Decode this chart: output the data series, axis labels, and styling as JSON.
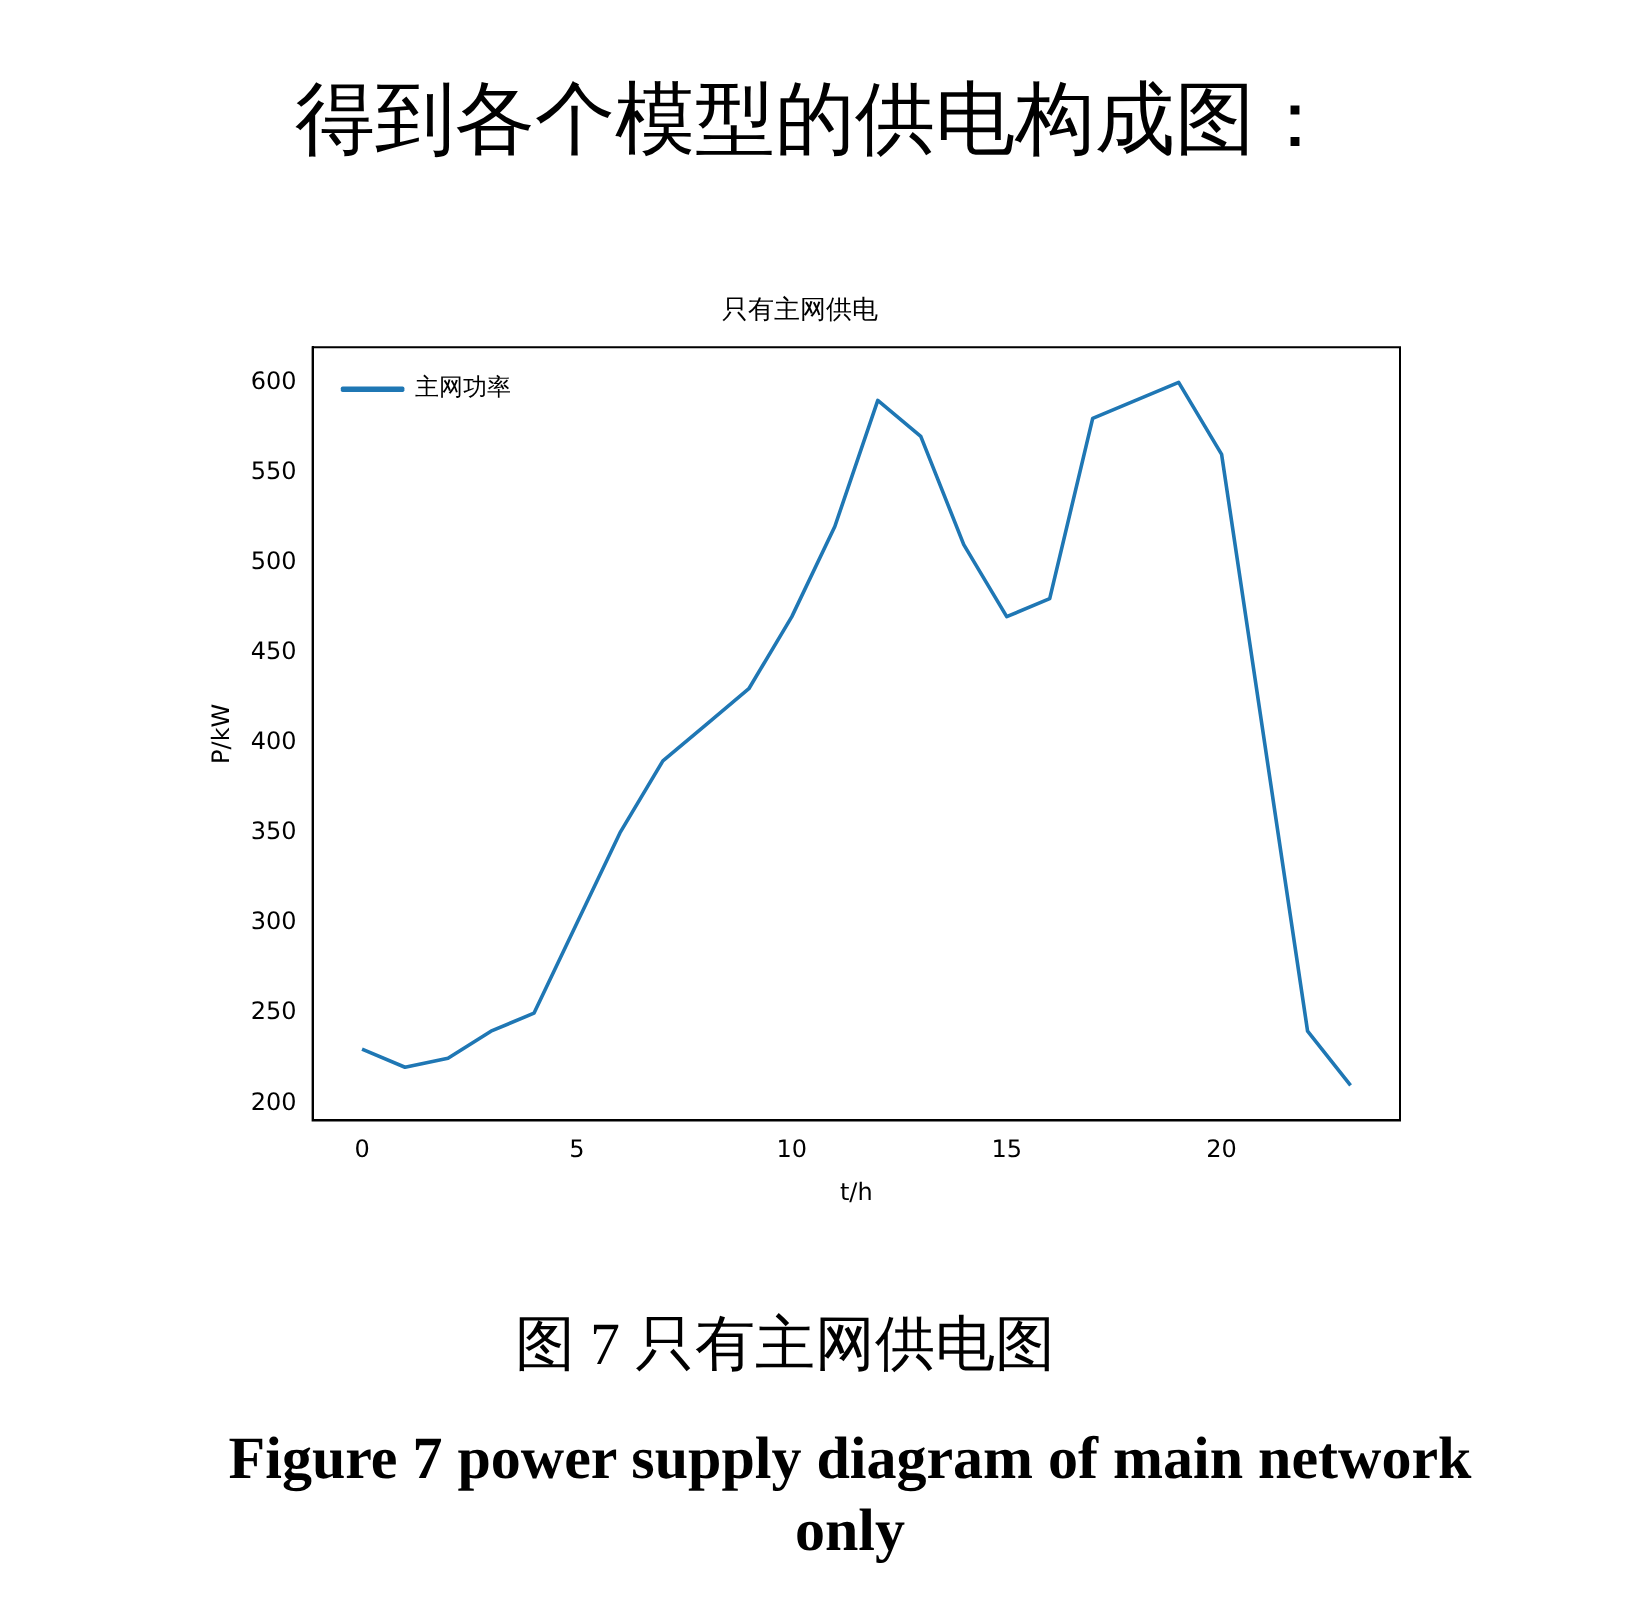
{
  "chart_data": {
    "type": "line",
    "title": "只有主网供电",
    "xlabel": "t/h",
    "ylabel": "P/kW",
    "annotations": [
      "得到各个模型的供电构成图：",
      "图 7 只有主网供电图",
      "Figure 7 power supply diagram of main network only"
    ],
    "x": [
      0,
      1,
      2,
      3,
      4,
      5,
      6,
      7,
      8,
      9,
      10,
      11,
      12,
      13,
      14,
      15,
      16,
      17,
      18,
      19,
      20,
      21,
      22,
      23
    ],
    "series": [
      {
        "name": "主网功率",
        "color": "#1f77b4",
        "values": [
          230,
          220,
          225,
          240,
          250,
          300,
          350,
          390,
          410,
          430,
          470,
          520,
          590,
          570,
          510,
          470,
          480,
          580,
          590,
          600,
          560,
          400,
          240,
          210
        ]
      }
    ],
    "xlim": [
      -1.15,
      24.15
    ],
    "xticks": [
      0,
      5,
      10,
      15,
      20
    ],
    "ylim": [
      190.5,
      619.5
    ],
    "yticks": [
      200,
      250,
      300,
      350,
      400,
      450,
      500,
      550,
      600
    ],
    "legend": "top left",
    "grid": false,
    "marker": "none",
    "line_style": "solid"
  }
}
